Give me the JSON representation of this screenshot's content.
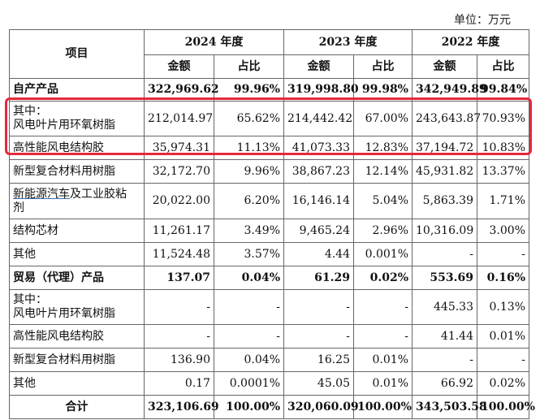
{
  "unit_label": "单位：万元",
  "header": {
    "item": "项目",
    "years": [
      "2024 年度",
      "2023 年度",
      "2022 年度"
    ],
    "amount": "金额",
    "ratio": "占比"
  },
  "rows": [
    {
      "name": "自产产品",
      "bold": true,
      "v": [
        "322,969.62",
        "99.96%",
        "319,998.80",
        "99.98%",
        "342,949.89",
        "99.84%"
      ]
    },
    {
      "name": "其中：\n风电叶片用环氧树脂",
      "v": [
        "212,014.97",
        "65.62%",
        "214,442.42",
        "67.00%",
        "243,643.87",
        "70.93%"
      ]
    },
    {
      "name": "高性能风电结构胶",
      "v": [
        "35,974.31",
        "11.13%",
        "41,073.33",
        "12.83%",
        "37,194.72",
        "10.83%"
      ]
    },
    {
      "name": "新型复合材料用树脂",
      "v": [
        "32,172.70",
        "9.96%",
        "38,867.23",
        "12.14%",
        "45,931.82",
        "13.37%"
      ]
    },
    {
      "name": "新能源汽车及工业胶粘剂",
      "v": [
        "20,022.00",
        "6.20%",
        "16,146.14",
        "5.04%",
        "5,863.39",
        "1.71%"
      ]
    },
    {
      "name": "结构芯材",
      "v": [
        "11,261.17",
        "3.49%",
        "9,465.24",
        "2.96%",
        "10,316.09",
        "3.00%"
      ]
    },
    {
      "name": "其他",
      "v": [
        "11,524.48",
        "3.57%",
        "4.44",
        "0.001%",
        "-",
        "-"
      ]
    },
    {
      "name": "贸易（代理）产品",
      "bold": true,
      "v": [
        "137.07",
        "0.04%",
        "61.29",
        "0.02%",
        "553.69",
        "0.16%"
      ]
    },
    {
      "name": "其中：\n风电叶片用环氧树脂",
      "v": [
        "-",
        "-",
        "-",
        "-",
        "445.33",
        "0.13%"
      ]
    },
    {
      "name": "高性能风电结构胶",
      "v": [
        "-",
        "-",
        "-",
        "-",
        "41.44",
        "0.01%"
      ]
    },
    {
      "name": "新型复合材料用树脂",
      "v": [
        "136.90",
        "0.04%",
        "16.25",
        "0.01%",
        "-",
        "-"
      ]
    },
    {
      "name": "其他",
      "v": [
        "0.17",
        "0.0001%",
        "45.05",
        "0.01%",
        "66.92",
        "0.02%"
      ]
    },
    {
      "name": "合计",
      "bold": true,
      "center": true,
      "v": [
        "323,106.69",
        "100.00%",
        "320,060.09",
        "100.00%",
        "343,503.58",
        "100.00%"
      ]
    }
  ]
}
